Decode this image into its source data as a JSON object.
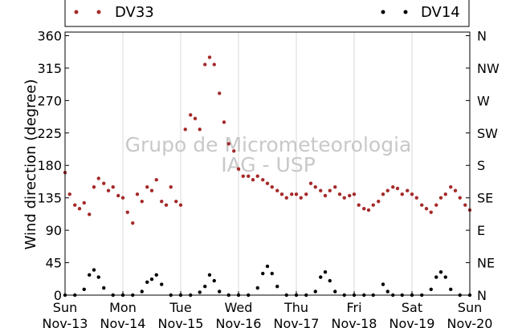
{
  "chart_data": {
    "type": "scatter",
    "ylabel": "Wind direction (degree)",
    "ylim": [
      0,
      365
    ],
    "xlim_days": [
      0,
      7
    ],
    "grid": "vertical-only",
    "legend": {
      "placement": "top",
      "entries": [
        "DV33",
        "DV14"
      ]
    },
    "x_ticks": [
      {
        "day": "Sun",
        "date": "Nov-13"
      },
      {
        "day": "Mon",
        "date": "Nov-14"
      },
      {
        "day": "Tue",
        "date": "Nov-15"
      },
      {
        "day": "Wed",
        "date": "Nov-16"
      },
      {
        "day": "Thu",
        "date": "Nov-17"
      },
      {
        "day": "Fri",
        "date": "Nov-18"
      },
      {
        "day": "Sat",
        "date": "Nov-19"
      },
      {
        "day": "Sun",
        "date": "Nov-20"
      }
    ],
    "y_ticks_left": [
      "0",
      "45",
      "90",
      "135",
      "180",
      "225",
      "270",
      "315",
      "360"
    ],
    "y_ticks_right": [
      "N",
      "NE",
      "E",
      "SE",
      "S",
      "SW",
      "W",
      "NW",
      "N"
    ],
    "watermark": [
      "Grupo de Micrometeorologia",
      "IAG - USP"
    ],
    "colors": {
      "DV33": "#a52a2a",
      "DV14": "#000000"
    },
    "series": [
      {
        "name": "DV33",
        "color": "#a52a2a",
        "points": [
          [
            0.0,
            170
          ],
          [
            0.08,
            140
          ],
          [
            0.17,
            125
          ],
          [
            0.25,
            120
          ],
          [
            0.33,
            128
          ],
          [
            0.42,
            112
          ],
          [
            0.5,
            150
          ],
          [
            0.58,
            162
          ],
          [
            0.67,
            155
          ],
          [
            0.75,
            145
          ],
          [
            0.83,
            150
          ],
          [
            0.92,
            138
          ],
          [
            1.0,
            135
          ],
          [
            1.08,
            115
          ],
          [
            1.17,
            100
          ],
          [
            1.25,
            140
          ],
          [
            1.33,
            130
          ],
          [
            1.42,
            150
          ],
          [
            1.5,
            145
          ],
          [
            1.58,
            160
          ],
          [
            1.67,
            130
          ],
          [
            1.75,
            125
          ],
          [
            1.83,
            150
          ],
          [
            1.92,
            130
          ],
          [
            2.0,
            125
          ],
          [
            2.08,
            230
          ],
          [
            2.17,
            250
          ],
          [
            2.25,
            245
          ],
          [
            2.33,
            230
          ],
          [
            2.42,
            320
          ],
          [
            2.5,
            330
          ],
          [
            2.58,
            320
          ],
          [
            2.67,
            280
          ],
          [
            2.75,
            240
          ],
          [
            2.83,
            210
          ],
          [
            2.92,
            200
          ],
          [
            3.0,
            175
          ],
          [
            3.08,
            165
          ],
          [
            3.17,
            165
          ],
          [
            3.25,
            160
          ],
          [
            3.33,
            165
          ],
          [
            3.42,
            160
          ],
          [
            3.5,
            155
          ],
          [
            3.58,
            150
          ],
          [
            3.67,
            145
          ],
          [
            3.75,
            140
          ],
          [
            3.83,
            135
          ],
          [
            3.92,
            140
          ],
          [
            4.0,
            140
          ],
          [
            4.08,
            135
          ],
          [
            4.17,
            140
          ],
          [
            4.25,
            155
          ],
          [
            4.33,
            150
          ],
          [
            4.42,
            145
          ],
          [
            4.5,
            138
          ],
          [
            4.58,
            145
          ],
          [
            4.67,
            150
          ],
          [
            4.75,
            140
          ],
          [
            4.83,
            135
          ],
          [
            4.92,
            138
          ],
          [
            5.0,
            140
          ],
          [
            5.08,
            125
          ],
          [
            5.17,
            120
          ],
          [
            5.25,
            118
          ],
          [
            5.33,
            125
          ],
          [
            5.42,
            130
          ],
          [
            5.5,
            140
          ],
          [
            5.58,
            145
          ],
          [
            5.67,
            150
          ],
          [
            5.75,
            148
          ],
          [
            5.83,
            140
          ],
          [
            5.92,
            145
          ],
          [
            6.0,
            140
          ],
          [
            6.08,
            135
          ],
          [
            6.17,
            125
          ],
          [
            6.25,
            120
          ],
          [
            6.33,
            115
          ],
          [
            6.42,
            125
          ],
          [
            6.5,
            135
          ],
          [
            6.58,
            140
          ],
          [
            6.67,
            150
          ],
          [
            6.75,
            145
          ],
          [
            6.83,
            135
          ],
          [
            6.92,
            125
          ],
          [
            7.0,
            118
          ]
        ]
      },
      {
        "name": "DV14",
        "color": "#000000",
        "points": [
          [
            0.0,
            0
          ],
          [
            0.17,
            0
          ],
          [
            0.33,
            8
          ],
          [
            0.42,
            28
          ],
          [
            0.5,
            35
          ],
          [
            0.58,
            25
          ],
          [
            0.67,
            10
          ],
          [
            0.83,
            0
          ],
          [
            1.0,
            0
          ],
          [
            1.17,
            0
          ],
          [
            1.33,
            5
          ],
          [
            1.42,
            18
          ],
          [
            1.5,
            22
          ],
          [
            1.58,
            28
          ],
          [
            1.67,
            15
          ],
          [
            1.83,
            0
          ],
          [
            2.0,
            0
          ],
          [
            2.17,
            0
          ],
          [
            2.33,
            4
          ],
          [
            2.42,
            12
          ],
          [
            2.5,
            28
          ],
          [
            2.58,
            20
          ],
          [
            2.67,
            5
          ],
          [
            2.83,
            0
          ],
          [
            3.0,
            0
          ],
          [
            3.17,
            0
          ],
          [
            3.33,
            10
          ],
          [
            3.42,
            30
          ],
          [
            3.5,
            40
          ],
          [
            3.58,
            30
          ],
          [
            3.67,
            12
          ],
          [
            3.83,
            0
          ],
          [
            4.0,
            0
          ],
          [
            4.17,
            0
          ],
          [
            4.33,
            5
          ],
          [
            4.42,
            25
          ],
          [
            4.5,
            32
          ],
          [
            4.58,
            20
          ],
          [
            4.67,
            5
          ],
          [
            4.83,
            0
          ],
          [
            5.0,
            0
          ],
          [
            5.17,
            0
          ],
          [
            5.33,
            0
          ],
          [
            5.5,
            15
          ],
          [
            5.58,
            5
          ],
          [
            5.67,
            0
          ],
          [
            5.83,
            0
          ],
          [
            6.0,
            0
          ],
          [
            6.17,
            0
          ],
          [
            6.33,
            8
          ],
          [
            6.42,
            25
          ],
          [
            6.5,
            32
          ],
          [
            6.58,
            25
          ],
          [
            6.67,
            8
          ],
          [
            6.83,
            0
          ],
          [
            7.0,
            0
          ]
        ]
      }
    ]
  }
}
